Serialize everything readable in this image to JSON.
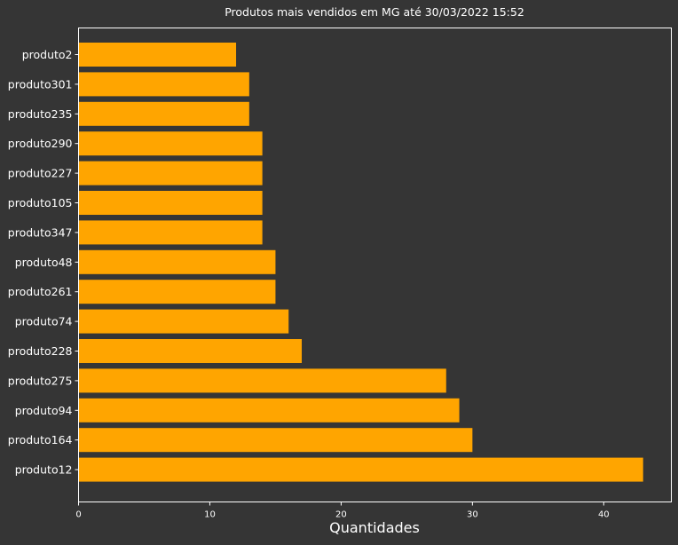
{
  "chart_data": {
    "type": "bar",
    "orientation": "horizontal",
    "title": "Produtos mais vendidos em MG até 30/03/2022 15:52",
    "xlabel": "Quantidades",
    "ylabel": "",
    "categories": [
      "produto2",
      "produto301",
      "produto235",
      "produto290",
      "produto227",
      "produto105",
      "produto347",
      "produto48",
      "produto261",
      "produto74",
      "produto228",
      "produto275",
      "produto94",
      "produto164",
      "produto12"
    ],
    "values": [
      12,
      13,
      13,
      14,
      14,
      14,
      14,
      15,
      15,
      16,
      17,
      28,
      29,
      30,
      43
    ],
    "xlim": [
      0,
      45.15
    ],
    "xticks": [
      0,
      10,
      20,
      30,
      40
    ],
    "grid": false,
    "legend": "none",
    "colors": {
      "background": "#353535",
      "bar": "#ffa500",
      "axis": "#ffffff",
      "text": "#ffffff"
    }
  }
}
